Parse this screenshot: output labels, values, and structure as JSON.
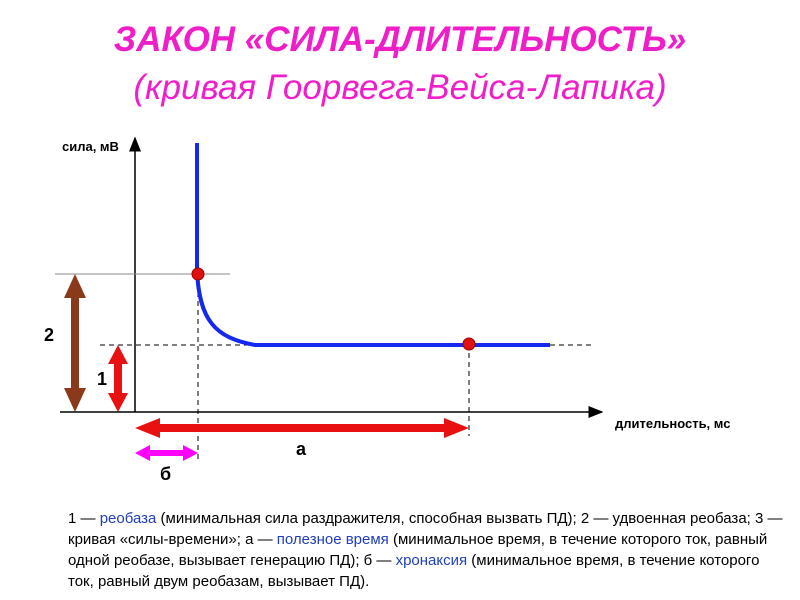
{
  "header": {
    "title": "ЗАКОН «СИЛА-ДЛИТЕЛЬНОСТЬ»",
    "subtitle": "(кривая Гоорвега-Вейса-Лапика)"
  },
  "diagram": {
    "y_axis_label": "сила, мВ",
    "x_axis_label": "длительность, мс",
    "labels": [
      "2",
      "1",
      "а",
      "б"
    ]
  },
  "caption": {
    "segments": [
      {
        "text": "1 — ",
        "color": "#000000"
      },
      {
        "text": "реобаза",
        "color": "#1f3fbf"
      },
      {
        "text": " (минимальная сила раздражителя, способная вызвать ПД); 2 — удвоенная реобаза; 3 — кривая «силы-времени»; а — ",
        "color": "#000000"
      },
      {
        "text": "полезное время",
        "color": "#1f3fbf"
      },
      {
        "text": " (минимальное время, в течение которого ток, равный одной реобазе, вызывает генерацию ПД); б — ",
        "color": "#000000"
      },
      {
        "text": "хронаксия",
        "color": "#1f3fbf"
      },
      {
        "text": " (минимальное время, в течение которого ток, равный двум реобазам, вызывает ПД).",
        "color": "#000000"
      }
    ]
  }
}
